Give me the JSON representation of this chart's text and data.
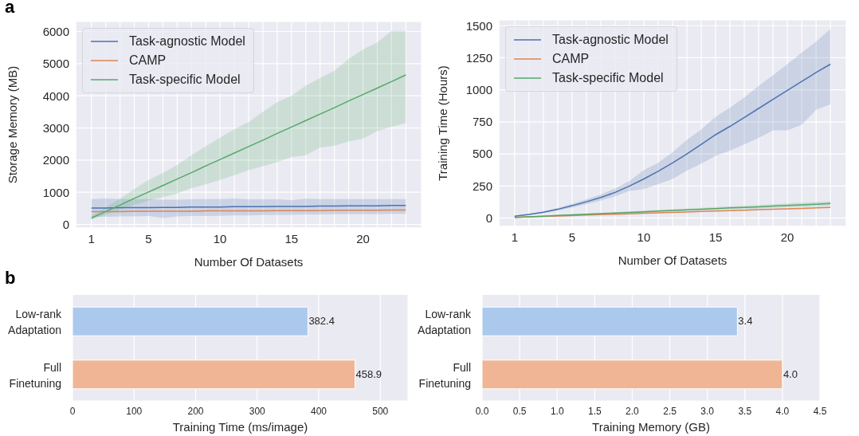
{
  "chart_data": [
    {
      "type": "line",
      "annotations": [
        "a"
      ],
      "xlabel": "Number Of Datasets",
      "ylabel": "Storage Memory (MB)",
      "x": [
        1,
        2,
        3,
        4,
        5,
        6,
        7,
        8,
        9,
        10,
        11,
        12,
        13,
        14,
        15,
        16,
        17,
        18,
        19,
        20,
        21,
        22,
        23
      ],
      "xlim": [
        -0.1,
        24.1
      ],
      "xticks": [
        1,
        {
          "value": 2,
          "label": null
        },
        {
          "value": 3,
          "label": null
        },
        {
          "value": 4,
          "label": null
        },
        5,
        {
          "value": 6,
          "label": null
        },
        {
          "value": 7,
          "label": null
        },
        {
          "value": 8,
          "label": null
        },
        {
          "value": 9,
          "label": null
        },
        10,
        {
          "value": 11,
          "label": null
        },
        {
          "value": 12,
          "label": null
        },
        {
          "value": 13,
          "label": null
        },
        {
          "value": 14,
          "label": null
        },
        15,
        {
          "value": 16,
          "label": null
        },
        {
          "value": 17,
          "label": null
        },
        {
          "value": 18,
          "label": null
        },
        {
          "value": 19,
          "label": null
        },
        20,
        {
          "value": 21,
          "label": null
        },
        {
          "value": 22,
          "label": null
        },
        {
          "value": 23,
          "label": null
        }
      ],
      "ylim": [
        -110,
        6310
      ],
      "yticks": [
        0,
        1000,
        2000,
        3000,
        4000,
        5000,
        6000
      ],
      "grid": true,
      "legend": "top left",
      "series": [
        {
          "name": "Task-agnostic Model",
          "color": "#4c72b0",
          "values": [
            510,
            510,
            520,
            520,
            520,
            530,
            530,
            540,
            540,
            540,
            550,
            550,
            550,
            560,
            560,
            560,
            570,
            570,
            580,
            580,
            580,
            590,
            590
          ],
          "lower": [
            240,
            240,
            250,
            250,
            260,
            200,
            250,
            260,
            260,
            270,
            280,
            280,
            290,
            290,
            300,
            310,
            310,
            320,
            320,
            320,
            320,
            330,
            330
          ],
          "upper": [
            790,
            810,
            790,
            780,
            790,
            770,
            770,
            780,
            790,
            790,
            810,
            780,
            780,
            780,
            760,
            800,
            790,
            790,
            790,
            790,
            790,
            790,
            790
          ]
        },
        {
          "name": "CAMP",
          "color": "#dd8452",
          "values": [
            400,
            400,
            400,
            410,
            410,
            410,
            410,
            410,
            420,
            420,
            420,
            420,
            420,
            430,
            430,
            430,
            430,
            440,
            440,
            440,
            440,
            450,
            450
          ]
        },
        {
          "name": "Task-specific Model",
          "color": "#55a868",
          "values": [
            200,
            400,
            600,
            810,
            1010,
            1210,
            1410,
            1610,
            1820,
            2020,
            2220,
            2420,
            2620,
            2830,
            3030,
            3230,
            3430,
            3630,
            3840,
            4040,
            4240,
            4440,
            4650
          ],
          "lower": [
            150,
            300,
            450,
            600,
            745,
            850,
            960,
            1130,
            1250,
            1385,
            1530,
            1685,
            1810,
            1940,
            2095,
            2150,
            2390,
            2450,
            2580,
            2665,
            2900,
            3035,
            3150
          ],
          "upper": [
            270,
            530,
            800,
            1100,
            1385,
            1600,
            1850,
            2150,
            2430,
            2700,
            2965,
            3180,
            3500,
            3800,
            4000,
            4315,
            4550,
            4780,
            5145,
            5445,
            5660,
            6020,
            6020
          ]
        }
      ]
    },
    {
      "type": "line",
      "xlabel": "Number Of Datasets",
      "ylabel": "Training Time (Hours)",
      "x": [
        1,
        2,
        3,
        4,
        5,
        6,
        7,
        8,
        9,
        10,
        11,
        12,
        13,
        14,
        15,
        16,
        17,
        18,
        19,
        20,
        21,
        22,
        23
      ],
      "xlim": [
        -0.1,
        24.1
      ],
      "xticks": [
        1,
        {
          "value": 2,
          "label": null
        },
        {
          "value": 3,
          "label": null
        },
        {
          "value": 4,
          "label": null
        },
        5,
        {
          "value": 6,
          "label": null
        },
        {
          "value": 7,
          "label": null
        },
        {
          "value": 8,
          "label": null
        },
        {
          "value": 9,
          "label": null
        },
        10,
        {
          "value": 11,
          "label": null
        },
        {
          "value": 12,
          "label": null
        },
        {
          "value": 13,
          "label": null
        },
        {
          "value": 14,
          "label": null
        },
        15,
        {
          "value": 16,
          "label": null
        },
        {
          "value": 17,
          "label": null
        },
        {
          "value": 18,
          "label": null
        },
        {
          "value": 19,
          "label": null
        },
        20,
        {
          "value": 21,
          "label": null
        },
        {
          "value": 22,
          "label": null
        },
        {
          "value": 23,
          "label": null
        }
      ],
      "ylim": [
        -65,
        1545
      ],
      "yticks": [
        0,
        250,
        500,
        750,
        1000,
        1250,
        1500
      ],
      "grid": true,
      "legend": "top left",
      "series": [
        {
          "name": "Task-agnostic Model",
          "color": "#4c72b0",
          "values": [
            15,
            28,
            45,
            68,
            96,
            127,
            160,
            200,
            250,
            305,
            365,
            430,
            500,
            575,
            650,
            715,
            785,
            855,
            925,
            995,
            1065,
            1135,
            1200
          ],
          "lower": [
            13,
            24,
            38,
            58,
            82,
            108,
            136,
            170,
            212,
            225,
            265,
            305,
            370,
            425,
            485,
            525,
            575,
            625,
            684,
            684,
            727,
            844,
            887
          ],
          "upper": [
            17,
            32,
            52,
            78,
            110,
            146,
            184,
            230,
            290,
            374,
            430,
            513,
            610,
            690,
            790,
            860,
            940,
            1030,
            1115,
            1200,
            1290,
            1375,
            1475
          ]
        },
        {
          "name": "CAMP",
          "color": "#dd8452",
          "values": [
            5,
            9,
            12,
            16,
            19,
            23,
            26,
            30,
            33,
            37,
            40,
            44,
            47,
            51,
            54,
            58,
            61,
            65,
            68,
            72,
            75,
            79,
            82
          ]
        },
        {
          "name": "Task-specific Model",
          "color": "#55a868",
          "values": [
            5,
            10,
            15,
            20,
            25,
            30,
            34,
            39,
            44,
            49,
            54,
            59,
            64,
            69,
            74,
            79,
            83,
            88,
            93,
            98,
            103,
            108,
            113
          ],
          "lower": [
            4,
            8,
            13,
            17,
            21,
            25,
            28,
            33,
            37,
            41,
            45,
            49,
            54,
            58,
            62,
            66,
            69,
            74,
            78,
            82,
            86,
            90,
            95
          ],
          "upper": [
            6,
            12,
            17,
            23,
            29,
            35,
            40,
            45,
            51,
            57,
            63,
            69,
            74,
            80,
            86,
            92,
            97,
            102,
            108,
            114,
            120,
            126,
            131
          ]
        }
      ]
    },
    {
      "type": "bar",
      "orientation": "horizontal",
      "annotations": [
        "b"
      ],
      "xlabel": "Training Time (ms/image)",
      "categories": [
        "Low-rank\nAdaptation",
        "Full\nFinetuning"
      ],
      "values": [
        382.4,
        458.9
      ],
      "colors": [
        "#abc9ec",
        "#efb594"
      ],
      "xlim": [
        0,
        545
      ],
      "xticks": [
        0,
        100,
        200,
        300,
        400,
        500
      ],
      "grid": "x",
      "data_labels": true
    },
    {
      "type": "bar",
      "orientation": "horizontal",
      "xlabel": "Training Memory (GB)",
      "categories": [
        "Low-rank\nAdaptation",
        "Full\nFinetuning"
      ],
      "values": [
        3.4,
        4.0
      ],
      "value_labels": [
        "3.4",
        "4.0"
      ],
      "colors": [
        "#abc9ec",
        "#efb594"
      ],
      "xlim": [
        0,
        4.5
      ],
      "xticks": [
        {
          "value": 0,
          "label": "0.0"
        },
        {
          "value": 0.5,
          "label": "0.5"
        },
        {
          "value": 1,
          "label": "1.0"
        },
        {
          "value": 1.5,
          "label": "1.5"
        },
        {
          "value": 2,
          "label": "2.0"
        },
        {
          "value": 2.5,
          "label": "2.5"
        },
        {
          "value": 3,
          "label": "3.0"
        },
        {
          "value": 3.5,
          "label": "3.5"
        },
        {
          "value": 4,
          "label": "4.0"
        },
        {
          "value": 4.5,
          "label": "4.5"
        }
      ],
      "grid": "x",
      "data_labels": true
    }
  ]
}
